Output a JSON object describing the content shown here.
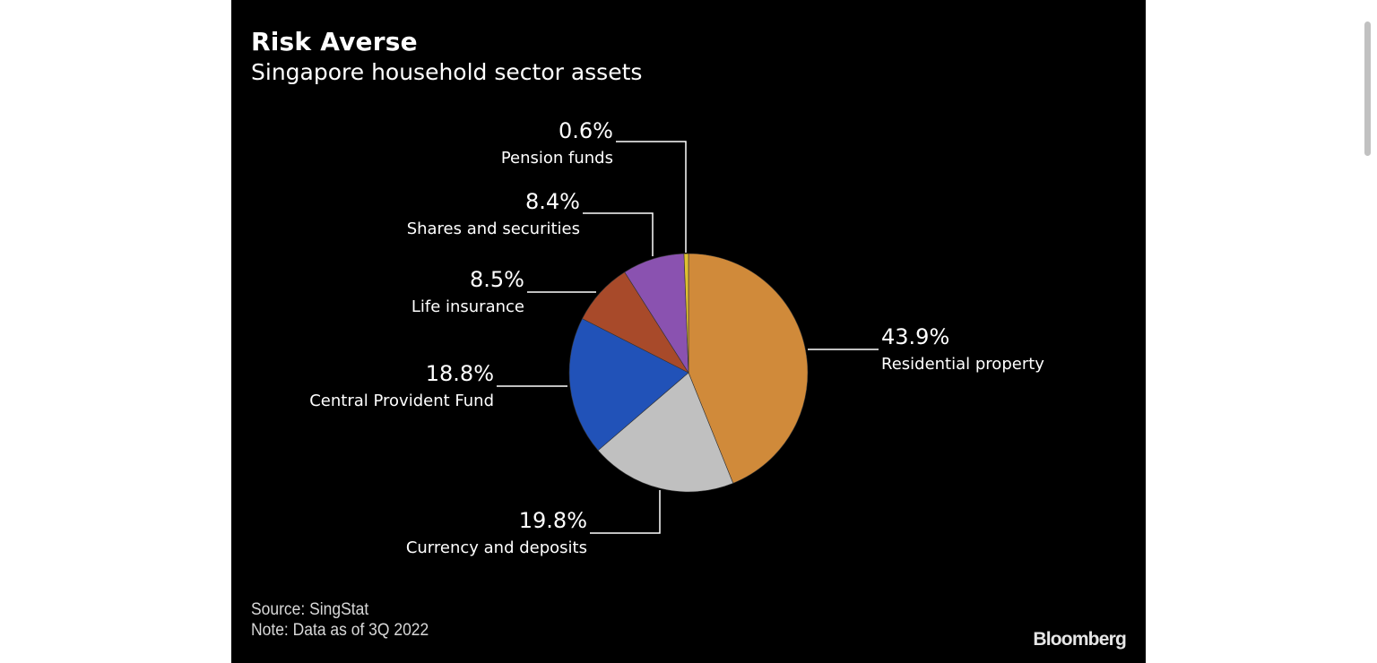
{
  "header": {
    "title": "Risk Averse",
    "subtitle": "Singapore household sector assets"
  },
  "footer": {
    "source": "Source: SingStat",
    "note": "Note: Data as of 3Q 2022",
    "brand": "Bloomberg"
  },
  "chart_data": {
    "type": "pie",
    "title": "Risk Averse",
    "subtitle": "Singapore household sector assets",
    "unit": "%",
    "start_angle_deg": 0,
    "direction": "clockwise",
    "slices": [
      {
        "label": "Residential property",
        "value": 43.9,
        "display": "43.9%",
        "color": "#d08a3a"
      },
      {
        "label": "Currency and deposits",
        "value": 19.8,
        "display": "19.8%",
        "color": "#c0c0c0"
      },
      {
        "label": "Central Provident Fund",
        "value": 18.8,
        "display": "18.8%",
        "color": "#2152b8"
      },
      {
        "label": "Life insurance",
        "value": 8.5,
        "display": "8.5%",
        "color": "#a84a2a"
      },
      {
        "label": "Shares and securities",
        "value": 8.4,
        "display": "8.4%",
        "color": "#8a52b0"
      },
      {
        "label": "Pension funds",
        "value": 0.6,
        "display": "0.6%",
        "color": "#e0c030"
      }
    ],
    "legend": "none",
    "source": "SingStat",
    "note": "Data as of 3Q 2022"
  }
}
